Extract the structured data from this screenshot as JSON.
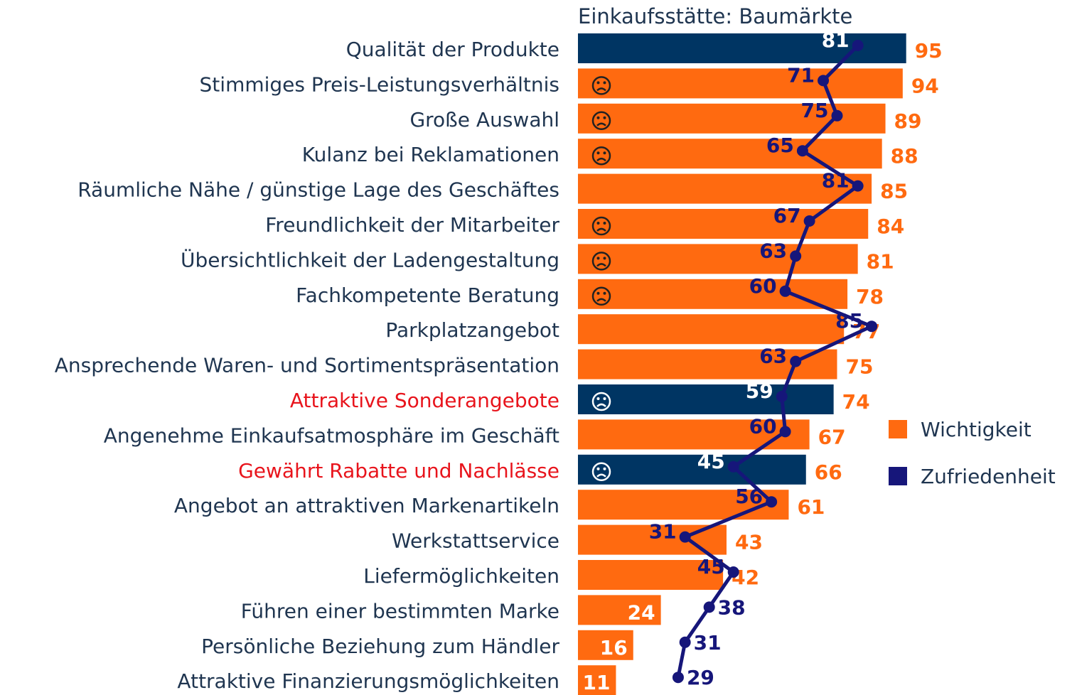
{
  "chart_data": {
    "type": "bar",
    "title": "Einkaufsstätte: Baumärkte",
    "categories": [
      "Qualität der Produkte",
      "Stimmiges Preis-Leistungsverhältnis",
      "Große Auswahl",
      "Kulanz bei Reklamationen",
      "Räumliche Nähe / günstige Lage des Geschäftes",
      "Freundlichkeit der Mitarbeiter",
      "Übersichtlichkeit der Ladengestaltung",
      "Fachkompetente Beratung",
      "Parkplatzangebot",
      "Ansprechende Waren- und Sortimentspräsentation",
      "Attraktive Sonderangebote",
      "Angenehme Einkaufsatmosphäre im Geschäft",
      "Gewährt Rabatte und Nachlässe",
      "Angebot an attraktiven Markenartikeln",
      "Werkstattservice",
      "Liefermöglichkeiten",
      "Führen einer bestimmten Marke",
      "Persönliche Beziehung zum Händler",
      "Attraktive Finanzierungsmöglichkeiten"
    ],
    "category_colors": [
      "#1f3550",
      "#1f3550",
      "#1f3550",
      "#1f3550",
      "#1f3550",
      "#1f3550",
      "#1f3550",
      "#1f3550",
      "#1f3550",
      "#1f3550",
      "#e8141c",
      "#1f3550",
      "#e8141c",
      "#1f3550",
      "#1f3550",
      "#1f3550",
      "#1f3550",
      "#1f3550",
      "#1f3550"
    ],
    "series": [
      {
        "name": "Wichtigkeit",
        "color": "#ff6a10",
        "highlight_color": "#003563",
        "highlighted": [
          true,
          false,
          false,
          false,
          false,
          false,
          false,
          false,
          false,
          false,
          true,
          false,
          true,
          false,
          false,
          false,
          false,
          false,
          false
        ],
        "values": [
          95,
          94,
          89,
          88,
          85,
          84,
          81,
          78,
          77,
          75,
          74,
          67,
          66,
          61,
          43,
          42,
          24,
          16,
          11
        ]
      },
      {
        "name": "Zufriedenheit",
        "type": "line",
        "color": "#16167a",
        "values": [
          81,
          71,
          75,
          65,
          81,
          67,
          63,
          60,
          85,
          63,
          59,
          60,
          45,
          56,
          31,
          45,
          38,
          31,
          29
        ]
      }
    ],
    "frown": [
      false,
      true,
      true,
      true,
      false,
      true,
      true,
      true,
      false,
      false,
      true,
      false,
      true,
      false,
      false,
      false,
      false,
      false,
      false
    ],
    "xlim": [
      0,
      100
    ],
    "legend": "right"
  }
}
